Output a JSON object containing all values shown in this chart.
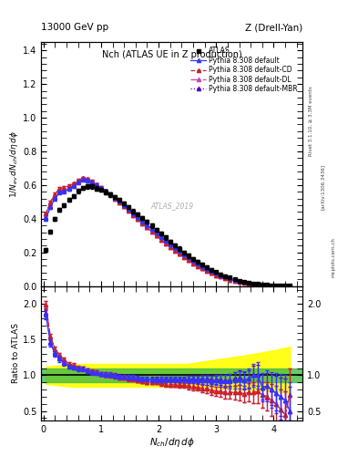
{
  "title_left": "13000 GeV pp",
  "title_right": "Z (Drell-Yan)",
  "plot_title": "Nch (ATLAS UE in Z production)",
  "xlabel": "$N_{ch}/d\\eta\\,d\\phi$",
  "ylabel_main": "$1/N_{ev}\\,dN_{ch}/d\\eta\\,d\\phi$",
  "ylabel_ratio": "Ratio to ATLAS",
  "watermark": "ATLAS_2019",
  "right_label1": "Rivet 3.1.10, ≥ 3.3M events",
  "right_label2": "[arXiv:1306.3436]",
  "site_label": "mcplots.cern.ch",
  "xlim": [
    -0.04,
    4.5
  ],
  "ylim_main": [
    0.0,
    1.45
  ],
  "ylim_ratio": [
    0.37,
    2.25
  ],
  "colors": {
    "atlas": "#000000",
    "default": "#3333ff",
    "cd": "#cc2222",
    "dl": "#cc44aa",
    "mbr": "#5500cc"
  },
  "atlas_x": [
    0.04,
    0.12,
    0.2,
    0.28,
    0.36,
    0.44,
    0.52,
    0.6,
    0.68,
    0.76,
    0.84,
    0.92,
    1.0,
    1.08,
    1.16,
    1.24,
    1.32,
    1.4,
    1.48,
    1.56,
    1.64,
    1.72,
    1.8,
    1.88,
    1.96,
    2.04,
    2.12,
    2.2,
    2.28,
    2.36,
    2.44,
    2.52,
    2.6,
    2.68,
    2.76,
    2.84,
    2.92,
    3.0,
    3.08,
    3.16,
    3.24,
    3.32,
    3.4,
    3.48,
    3.56,
    3.64,
    3.72,
    3.8,
    3.88,
    3.96,
    4.04,
    4.12,
    4.2,
    4.28
  ],
  "atlas_y": [
    0.215,
    0.322,
    0.399,
    0.452,
    0.481,
    0.512,
    0.535,
    0.565,
    0.583,
    0.592,
    0.592,
    0.58,
    0.571,
    0.558,
    0.543,
    0.528,
    0.513,
    0.49,
    0.471,
    0.445,
    0.425,
    0.404,
    0.382,
    0.359,
    0.335,
    0.312,
    0.288,
    0.265,
    0.243,
    0.222,
    0.2,
    0.18,
    0.161,
    0.143,
    0.127,
    0.111,
    0.097,
    0.083,
    0.071,
    0.06,
    0.05,
    0.041,
    0.033,
    0.027,
    0.021,
    0.017,
    0.013,
    0.01,
    0.008,
    0.006,
    0.005,
    0.004,
    0.003,
    0.002
  ],
  "atlas_yerr": [
    0.012,
    0.012,
    0.012,
    0.012,
    0.012,
    0.012,
    0.012,
    0.012,
    0.012,
    0.012,
    0.012,
    0.012,
    0.012,
    0.012,
    0.012,
    0.012,
    0.012,
    0.012,
    0.012,
    0.012,
    0.012,
    0.012,
    0.012,
    0.012,
    0.012,
    0.012,
    0.012,
    0.012,
    0.012,
    0.012,
    0.012,
    0.012,
    0.01,
    0.01,
    0.01,
    0.01,
    0.009,
    0.009,
    0.008,
    0.007,
    0.006,
    0.005,
    0.004,
    0.004,
    0.003,
    0.003,
    0.002,
    0.002,
    0.002,
    0.001,
    0.001,
    0.001,
    0.001,
    0.001
  ],
  "mc_x": [
    0.04,
    0.12,
    0.2,
    0.28,
    0.36,
    0.44,
    0.52,
    0.6,
    0.68,
    0.76,
    0.84,
    0.92,
    1.0,
    1.08,
    1.16,
    1.24,
    1.32,
    1.4,
    1.48,
    1.56,
    1.64,
    1.72,
    1.8,
    1.88,
    1.96,
    2.04,
    2.12,
    2.2,
    2.28,
    2.36,
    2.44,
    2.52,
    2.6,
    2.68,
    2.76,
    2.84,
    2.92,
    3.0,
    3.08,
    3.16,
    3.24,
    3.32,
    3.4,
    3.48,
    3.56,
    3.64,
    3.72,
    3.8,
    3.88,
    3.96,
    4.04,
    4.12,
    4.2,
    4.28
  ],
  "default_y": [
    0.399,
    0.467,
    0.521,
    0.557,
    0.562,
    0.576,
    0.593,
    0.618,
    0.633,
    0.628,
    0.617,
    0.6,
    0.583,
    0.565,
    0.546,
    0.525,
    0.505,
    0.481,
    0.458,
    0.432,
    0.408,
    0.385,
    0.362,
    0.339,
    0.316,
    0.293,
    0.271,
    0.249,
    0.228,
    0.208,
    0.188,
    0.169,
    0.151,
    0.134,
    0.118,
    0.103,
    0.089,
    0.077,
    0.065,
    0.055,
    0.046,
    0.038,
    0.031,
    0.025,
    0.02,
    0.016,
    0.013,
    0.01,
    0.008,
    0.006,
    0.005,
    0.004,
    0.003,
    0.002
  ],
  "cd_y": [
    0.43,
    0.497,
    0.548,
    0.58,
    0.585,
    0.595,
    0.608,
    0.628,
    0.641,
    0.636,
    0.622,
    0.603,
    0.585,
    0.565,
    0.544,
    0.521,
    0.499,
    0.473,
    0.449,
    0.422,
    0.397,
    0.373,
    0.348,
    0.324,
    0.3,
    0.277,
    0.254,
    0.232,
    0.211,
    0.191,
    0.172,
    0.153,
    0.136,
    0.119,
    0.104,
    0.09,
    0.077,
    0.065,
    0.055,
    0.046,
    0.038,
    0.031,
    0.025,
    0.02,
    0.016,
    0.013,
    0.01,
    0.008,
    0.006,
    0.005,
    0.004,
    0.003,
    0.002,
    0.002
  ],
  "dl_y": [
    0.43,
    0.497,
    0.548,
    0.58,
    0.585,
    0.595,
    0.608,
    0.628,
    0.641,
    0.636,
    0.622,
    0.603,
    0.585,
    0.565,
    0.544,
    0.521,
    0.499,
    0.473,
    0.449,
    0.422,
    0.397,
    0.373,
    0.348,
    0.324,
    0.3,
    0.277,
    0.254,
    0.232,
    0.211,
    0.191,
    0.172,
    0.153,
    0.136,
    0.119,
    0.104,
    0.09,
    0.077,
    0.065,
    0.055,
    0.046,
    0.038,
    0.031,
    0.025,
    0.02,
    0.016,
    0.013,
    0.01,
    0.008,
    0.006,
    0.005,
    0.004,
    0.003,
    0.002,
    0.002
  ],
  "mbr_y": [
    0.408,
    0.474,
    0.528,
    0.564,
    0.57,
    0.583,
    0.599,
    0.622,
    0.636,
    0.631,
    0.619,
    0.602,
    0.585,
    0.567,
    0.548,
    0.527,
    0.507,
    0.483,
    0.46,
    0.434,
    0.41,
    0.387,
    0.364,
    0.341,
    0.318,
    0.295,
    0.273,
    0.251,
    0.23,
    0.21,
    0.19,
    0.171,
    0.153,
    0.136,
    0.12,
    0.105,
    0.091,
    0.078,
    0.067,
    0.056,
    0.047,
    0.039,
    0.032,
    0.026,
    0.021,
    0.017,
    0.013,
    0.01,
    0.008,
    0.006,
    0.005,
    0.004,
    0.003,
    0.002
  ],
  "mc_yerr": [
    0.008,
    0.008,
    0.008,
    0.008,
    0.008,
    0.008,
    0.008,
    0.008,
    0.008,
    0.008,
    0.008,
    0.008,
    0.008,
    0.008,
    0.008,
    0.008,
    0.008,
    0.008,
    0.008,
    0.008,
    0.008,
    0.008,
    0.008,
    0.008,
    0.008,
    0.008,
    0.008,
    0.008,
    0.008,
    0.008,
    0.008,
    0.008,
    0.008,
    0.007,
    0.007,
    0.006,
    0.006,
    0.005,
    0.005,
    0.004,
    0.004,
    0.003,
    0.003,
    0.003,
    0.002,
    0.002,
    0.002,
    0.002,
    0.001,
    0.001,
    0.001,
    0.001,
    0.001,
    0.001
  ],
  "ratio_default": [
    1.85,
    1.45,
    1.3,
    1.23,
    1.17,
    1.12,
    1.11,
    1.09,
    1.09,
    1.06,
    1.04,
    1.03,
    1.02,
    1.01,
    1.01,
    0.99,
    0.98,
    0.98,
    0.97,
    0.97,
    0.96,
    0.95,
    0.95,
    0.94,
    0.94,
    0.94,
    0.94,
    0.94,
    0.94,
    0.94,
    0.94,
    0.94,
    0.94,
    0.94,
    0.93,
    0.93,
    0.92,
    0.93,
    0.92,
    0.92,
    0.92,
    0.93,
    0.94,
    0.93,
    0.95,
    1.0,
    1.0,
    0.83,
    0.85,
    0.8,
    0.75,
    0.7,
    0.65,
    0.5
  ],
  "ratio_cd": [
    1.99,
    1.54,
    1.37,
    1.28,
    1.22,
    1.16,
    1.14,
    1.11,
    1.1,
    1.07,
    1.05,
    1.04,
    1.02,
    1.01,
    1.0,
    0.99,
    0.97,
    0.97,
    0.95,
    0.95,
    0.93,
    0.92,
    0.91,
    0.9,
    0.9,
    0.89,
    0.88,
    0.87,
    0.87,
    0.86,
    0.86,
    0.85,
    0.84,
    0.83,
    0.82,
    0.81,
    0.79,
    0.78,
    0.77,
    0.76,
    0.76,
    0.76,
    0.76,
    0.74,
    0.76,
    0.76,
    0.77,
    0.73,
    0.7,
    0.65,
    0.6,
    0.52,
    0.45,
    0.73
  ],
  "ratio_dl": [
    1.99,
    1.54,
    1.37,
    1.28,
    1.22,
    1.16,
    1.14,
    1.11,
    1.1,
    1.07,
    1.05,
    1.04,
    1.02,
    1.01,
    1.0,
    0.99,
    0.97,
    0.97,
    0.95,
    0.95,
    0.93,
    0.92,
    0.91,
    0.9,
    0.9,
    0.89,
    0.88,
    0.87,
    0.87,
    0.86,
    0.86,
    0.85,
    0.84,
    0.83,
    0.82,
    0.81,
    0.79,
    0.78,
    0.77,
    0.76,
    0.76,
    0.76,
    0.76,
    0.74,
    0.76,
    0.76,
    0.77,
    0.73,
    0.7,
    0.65,
    0.6,
    0.52,
    0.45,
    0.73
  ],
  "ratio_mbr": [
    1.88,
    1.47,
    1.32,
    1.25,
    1.19,
    1.14,
    1.12,
    1.1,
    1.09,
    1.07,
    1.05,
    1.04,
    1.02,
    1.02,
    1.01,
    1.0,
    0.99,
    0.98,
    0.97,
    0.97,
    0.96,
    0.96,
    0.95,
    0.95,
    0.95,
    0.95,
    0.95,
    0.95,
    0.95,
    0.95,
    0.95,
    0.95,
    0.95,
    0.95,
    0.95,
    0.95,
    0.94,
    0.94,
    0.94,
    0.93,
    0.93,
    0.95,
    0.97,
    0.93,
    0.95,
    1.0,
    1.0,
    0.83,
    0.85,
    0.8,
    0.75,
    0.7,
    0.65,
    0.5
  ],
  "ratio_err": [
    0.06,
    0.05,
    0.04,
    0.04,
    0.03,
    0.03,
    0.03,
    0.03,
    0.03,
    0.03,
    0.03,
    0.03,
    0.03,
    0.03,
    0.03,
    0.03,
    0.03,
    0.03,
    0.03,
    0.03,
    0.03,
    0.03,
    0.03,
    0.03,
    0.03,
    0.04,
    0.04,
    0.04,
    0.04,
    0.04,
    0.04,
    0.05,
    0.05,
    0.05,
    0.06,
    0.06,
    0.07,
    0.07,
    0.08,
    0.09,
    0.1,
    0.11,
    0.12,
    0.13,
    0.14,
    0.16,
    0.18,
    0.2,
    0.22,
    0.25,
    0.28,
    0.32,
    0.36,
    0.4
  ],
  "green_band_lo": 0.9,
  "green_band_hi": 1.1,
  "yellow_band_lo_x": [
    0.04,
    0.5,
    1.0,
    1.5,
    2.0,
    2.5,
    3.0,
    3.5,
    4.0,
    4.28
  ],
  "yellow_band_lo": [
    0.88,
    0.84,
    0.84,
    0.84,
    0.84,
    0.84,
    0.82,
    0.8,
    0.78,
    0.75
  ],
  "yellow_band_hi": [
    1.12,
    1.16,
    1.16,
    1.16,
    1.16,
    1.16,
    1.22,
    1.28,
    1.35,
    1.4
  ]
}
